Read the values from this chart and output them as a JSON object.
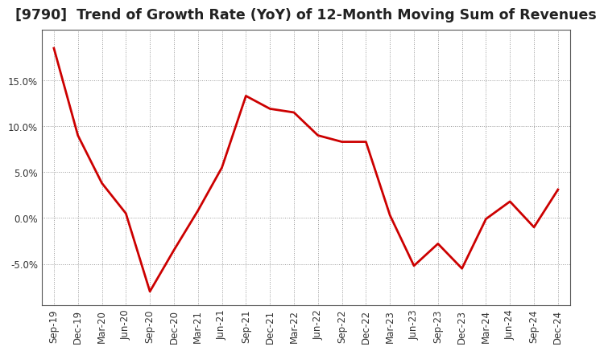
{
  "title": "[9790]  Trend of Growth Rate (YoY) of 12-Month Moving Sum of Revenues",
  "x_labels": [
    "Sep-19",
    "Dec-19",
    "Mar-20",
    "Jun-20",
    "Sep-20",
    "Dec-20",
    "Mar-21",
    "Jun-21",
    "Sep-21",
    "Dec-21",
    "Mar-22",
    "Jun-22",
    "Sep-22",
    "Dec-22",
    "Mar-23",
    "Jun-23",
    "Sep-23",
    "Dec-23",
    "Mar-24",
    "Jun-24",
    "Sep-24",
    "Dec-24"
  ],
  "y_values": [
    18.5,
    9.0,
    3.8,
    0.5,
    -8.0,
    -3.5,
    0.8,
    5.5,
    13.3,
    11.9,
    11.5,
    9.0,
    8.3,
    8.3,
    0.3,
    -5.2,
    -2.8,
    -5.5,
    -0.1,
    1.8,
    -1.0,
    3.1
  ],
  "line_color": "#cc0000",
  "line_width": 2.0,
  "background_color": "#ffffff",
  "plot_bg_color": "#ffffff",
  "grid_color": "#999999",
  "ylim": [
    -9.5,
    20.5
  ],
  "yticks": [
    -5.0,
    0.0,
    5.0,
    10.0,
    15.0
  ],
  "title_fontsize": 12.5,
  "tick_fontsize": 8.5,
  "title_color": "#222222"
}
